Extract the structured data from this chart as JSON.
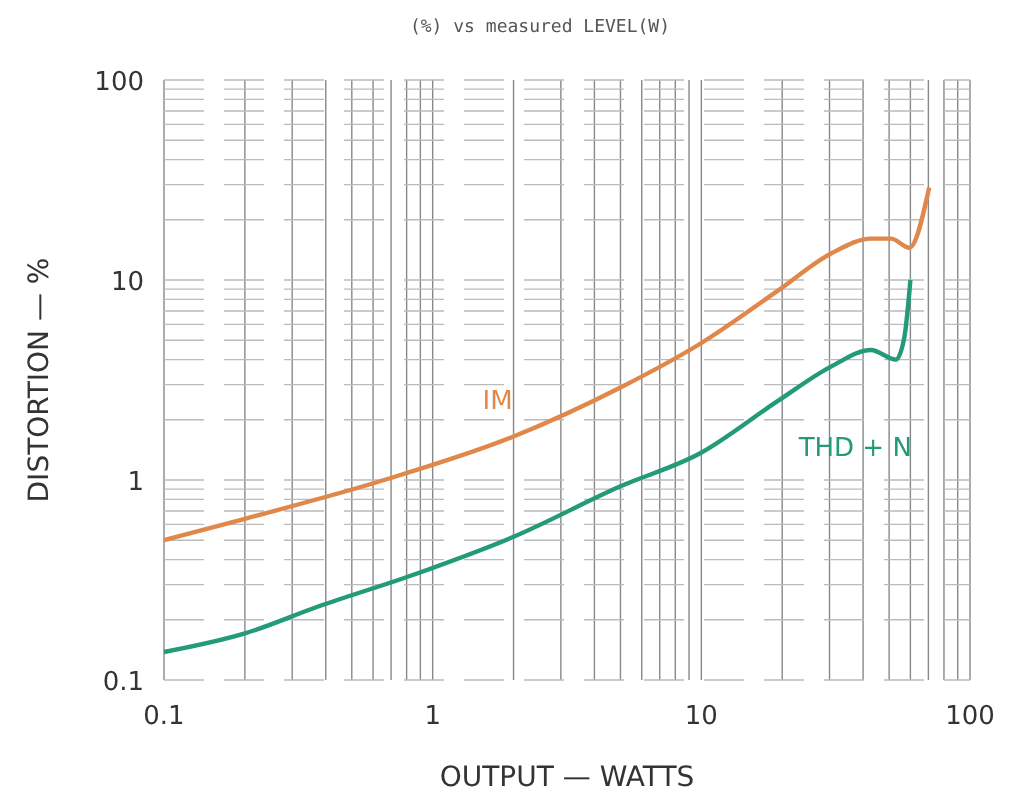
{
  "chart_data": {
    "type": "line",
    "title": "(%) vs measured LEVEL(W)",
    "xlabel": "OUTPUT — WATTS",
    "ylabel": "DISTORTION — %",
    "log": "xy",
    "grid": true,
    "marker": "none",
    "line_style": "solid",
    "xlim": [
      0.1,
      100
    ],
    "ylim": [
      0.1,
      100
    ],
    "xticks": [
      {
        "value": 0.1,
        "label": "0.1"
      },
      1,
      10,
      100
    ],
    "yticks": [
      {
        "value": 0.1,
        "label": "0.1"
      },
      1,
      10,
      100
    ],
    "series": [
      {
        "name": "IM",
        "color": "#e0874a",
        "x": [
          0.1,
          0.2,
          0.66,
          2.0,
          5.0,
          9.9,
          19.4,
          30.5,
          42.8,
          50.8,
          59.5,
          70.5
        ],
        "values": [
          0.5,
          0.64,
          1.0,
          1.65,
          2.9,
          4.8,
          8.9,
          13.6,
          16.1,
          16.1,
          14.5,
          29
        ]
      },
      {
        "name": "THD + N",
        "color": "#239a78",
        "x": [
          0.1,
          0.2,
          0.375,
          0.87,
          2.0,
          5.0,
          9.9,
          19.4,
          30.5,
          42.8,
          53,
          57,
          60
        ],
        "values": [
          0.138,
          0.171,
          0.233,
          0.34,
          0.52,
          0.93,
          1.36,
          2.5,
          3.7,
          4.47,
          4.0,
          5.2,
          10
        ]
      }
    ]
  }
}
